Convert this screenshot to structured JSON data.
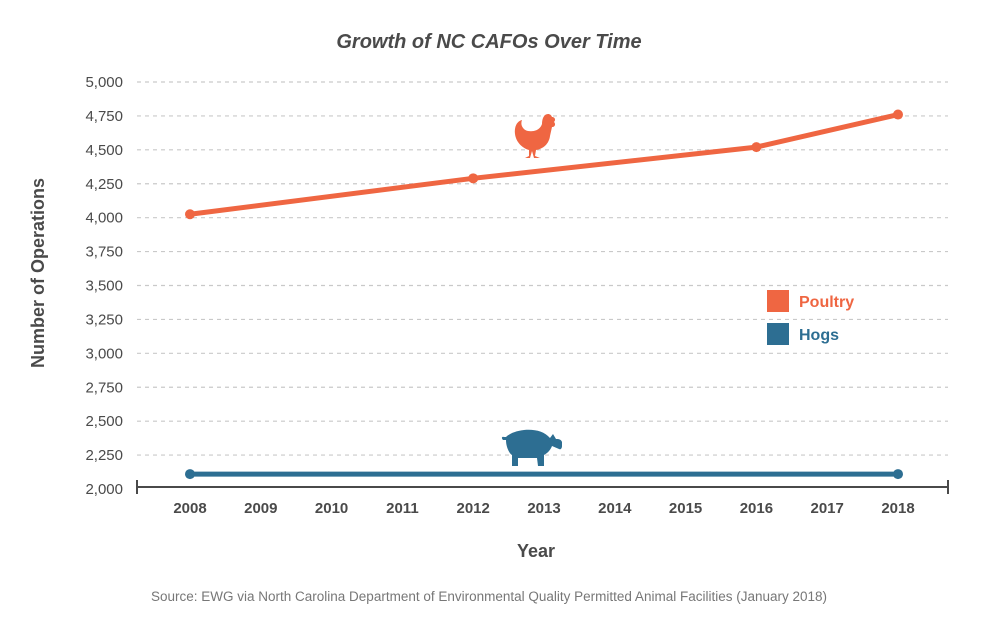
{
  "chart_data": {
    "type": "line",
    "title": "Growth of NC CAFOs Over Time",
    "xlabel": "Year",
    "ylabel": "Number of Operations",
    "categories": [
      "2008",
      "2009",
      "2010",
      "2011",
      "2012",
      "2013",
      "2014",
      "2015",
      "2016",
      "2017",
      "2018"
    ],
    "ylim": [
      2000,
      5000
    ],
    "yticks": [
      2000,
      2250,
      2500,
      2750,
      3000,
      3250,
      3500,
      3750,
      4000,
      4250,
      4500,
      4750,
      5000
    ],
    "ytick_labels": [
      "2,000",
      "2,250",
      "2,500",
      "2,750",
      "3,000",
      "3,250",
      "3,500",
      "3,750",
      "4,000",
      "4,250",
      "4,500",
      "4,750",
      "5,000"
    ],
    "grid": "horizontal dashed",
    "legend_position": "right",
    "series": [
      {
        "name": "Poultry",
        "color": "#ef6642",
        "icon": "chicken-icon",
        "points": [
          {
            "x": "2008",
            "y": 4025
          },
          {
            "x": "2012",
            "y": 4290
          },
          {
            "x": "2016",
            "y": 4520
          },
          {
            "x": "2018",
            "y": 4760
          }
        ]
      },
      {
        "name": "Hogs",
        "color": "#2d6e92",
        "icon": "pig-icon",
        "points": [
          {
            "x": "2008",
            "y": 2110
          },
          {
            "x": "2018",
            "y": 2110
          }
        ]
      }
    ],
    "source": "Source: EWG via North Carolina Department of Environmental Quality Permitted Animal Facilities (January 2018)"
  }
}
